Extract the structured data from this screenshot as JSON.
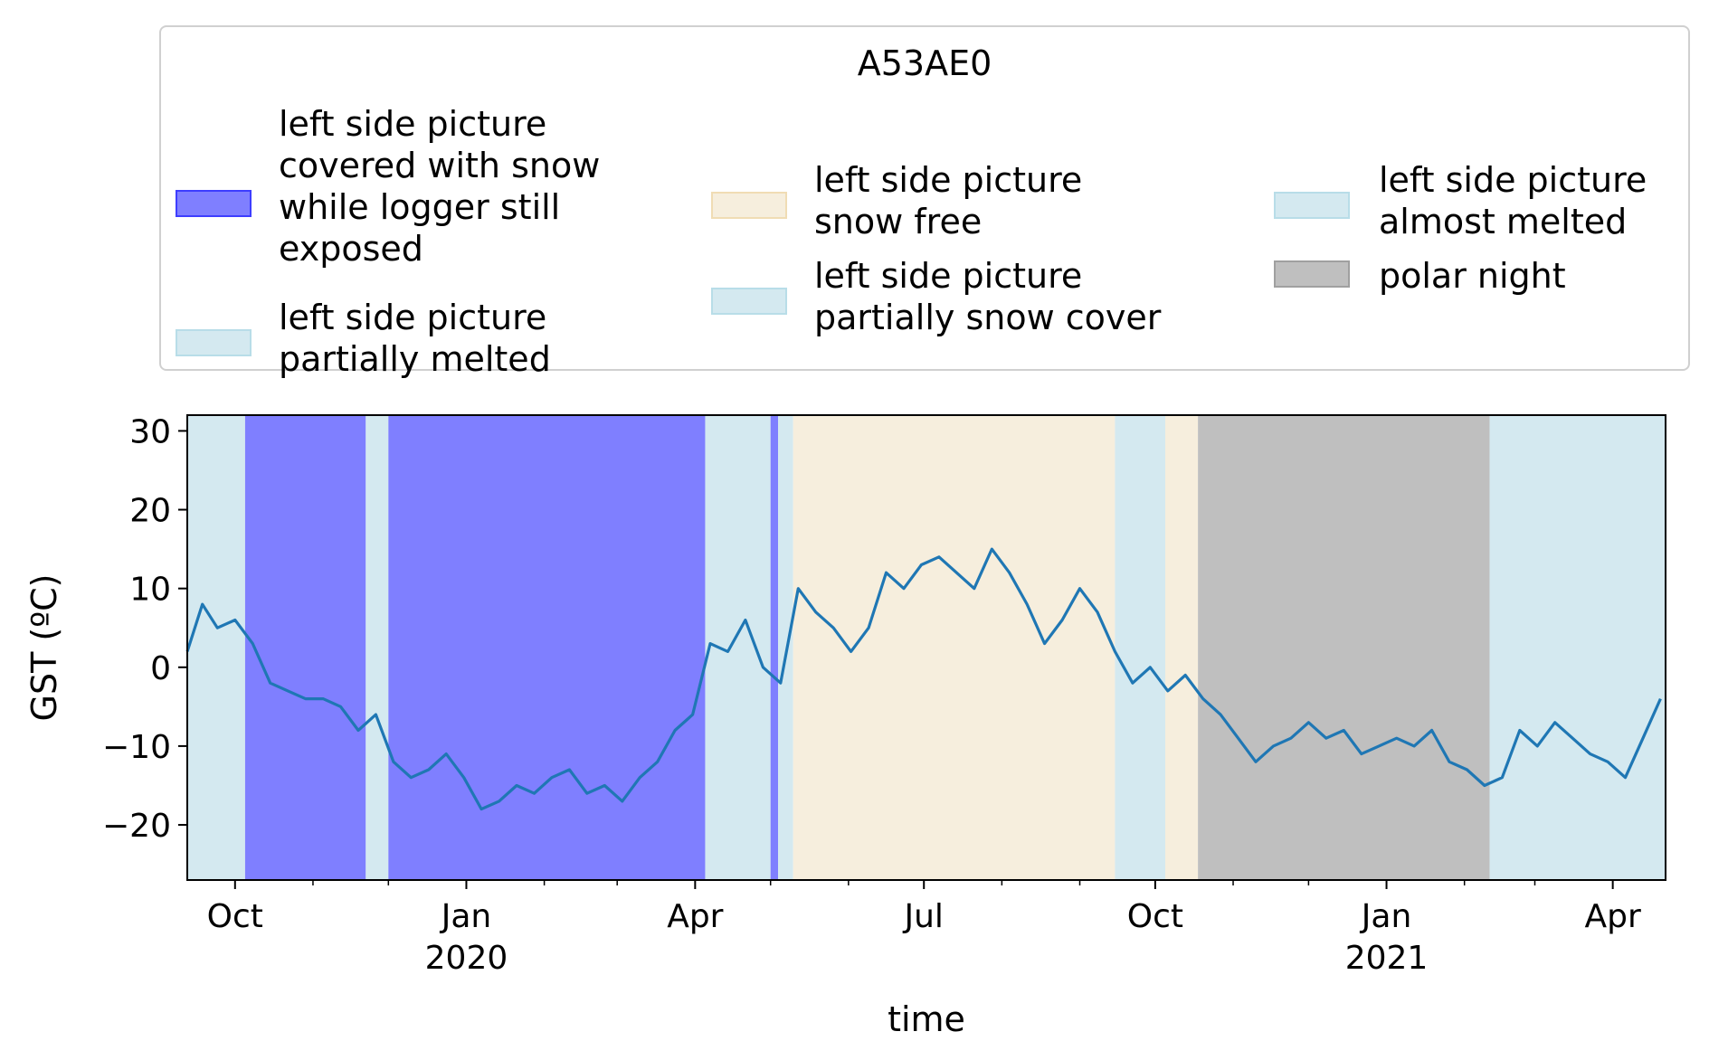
{
  "chart_data": {
    "type": "line",
    "title": "",
    "xlabel": "time",
    "ylabel": "GST (ºC)",
    "ylim": [
      -27,
      32
    ],
    "xlim": [
      "2019-09-12",
      "2021-04-22"
    ],
    "y_ticks": [
      30,
      20,
      10,
      0,
      -10,
      -20
    ],
    "y_tick_labels": [
      "30",
      "20",
      "10",
      "0",
      "−10",
      "−20"
    ],
    "x_ticks": [
      {
        "date": "2019-10-01",
        "label": "Oct",
        "sublabel": ""
      },
      {
        "date": "2020-01-01",
        "label": "Jan",
        "sublabel": "2020"
      },
      {
        "date": "2020-04-01",
        "label": "Apr",
        "sublabel": ""
      },
      {
        "date": "2020-07-01",
        "label": "Jul",
        "sublabel": ""
      },
      {
        "date": "2020-10-01",
        "label": "Oct",
        "sublabel": ""
      },
      {
        "date": "2021-01-01",
        "label": "Jan",
        "sublabel": "2021"
      },
      {
        "date": "2021-04-01",
        "label": "Apr",
        "sublabel": ""
      }
    ],
    "minor_ticks": [
      "2019-09-01",
      "2019-11-01",
      "2019-12-01",
      "2020-02-01",
      "2020-03-01",
      "2020-05-01",
      "2020-06-01",
      "2020-08-01",
      "2020-09-01",
      "2020-11-01",
      "2020-12-01",
      "2021-02-01",
      "2021-03-01"
    ],
    "legend": {
      "title": "A53AE0",
      "placement": "top",
      "entries": [
        {
          "label": "left side picture\ncovered with snow\nwhile logger still\nexposed",
          "color": "#7f7fff",
          "edge": "#3d3dff"
        },
        {
          "label": "left side picture\npartially melted",
          "color": "#d4e9f0",
          "edge": "#b8dde8"
        },
        {
          "label": "left side picture\nsnow free",
          "color": "#f6eedd",
          "edge": "#f0dcb4"
        },
        {
          "label": "left side picture\npartially snow cover",
          "color": "#d4e9f0",
          "edge": "#b8dde8"
        },
        {
          "label": "left side picture\nalmost melted",
          "color": "#d4e9f0",
          "edge": "#b8dde8"
        },
        {
          "label": "polar night",
          "color": "#bfbfbf",
          "edge": "#a0a0a0"
        }
      ]
    },
    "spans": [
      {
        "start": "2019-09-12",
        "end": "2019-10-05",
        "category": "left side picture partially melted",
        "color": "#d4e9f0"
      },
      {
        "start": "2019-10-05",
        "end": "2019-11-22",
        "category": "left side picture covered with snow while logger still exposed",
        "color": "#7f7fff"
      },
      {
        "start": "2019-11-22",
        "end": "2019-12-01",
        "category": "left side picture partially melted",
        "color": "#d4e9f0"
      },
      {
        "start": "2019-12-01",
        "end": "2020-04-05",
        "category": "left side picture covered with snow while logger still exposed",
        "color": "#7f7fff"
      },
      {
        "start": "2020-04-05",
        "end": "2020-05-01",
        "category": "left side picture partially melted",
        "color": "#d4e9f0"
      },
      {
        "start": "2020-05-01",
        "end": "2020-05-04",
        "category": "left side picture covered with snow while logger still exposed",
        "color": "#7f7fff"
      },
      {
        "start": "2020-05-04",
        "end": "2020-05-10",
        "category": "left side picture almost melted",
        "color": "#d4e9f0"
      },
      {
        "start": "2020-05-10",
        "end": "2020-09-15",
        "category": "left side picture snow free",
        "color": "#f6eedd"
      },
      {
        "start": "2020-09-15",
        "end": "2020-10-05",
        "category": "left side picture partially snow cover",
        "color": "#d4e9f0"
      },
      {
        "start": "2020-10-05",
        "end": "2020-10-18",
        "category": "left side picture snow free",
        "color": "#f6eedd"
      },
      {
        "start": "2020-10-18",
        "end": "2021-02-11",
        "category": "polar night",
        "color": "#bfbfbf"
      },
      {
        "start": "2021-02-11",
        "end": "2021-04-22",
        "category": "left side picture almost melted",
        "color": "#d4e9f0"
      }
    ],
    "series": [
      {
        "name": "",
        "color": "#1f77b4",
        "x": [
          "2019-09-12",
          "2019-09-18",
          "2019-09-24",
          "2019-10-01",
          "2019-10-08",
          "2019-10-15",
          "2019-10-22",
          "2019-10-29",
          "2019-11-05",
          "2019-11-12",
          "2019-11-19",
          "2019-11-26",
          "2019-12-03",
          "2019-12-10",
          "2019-12-17",
          "2019-12-24",
          "2019-12-31",
          "2020-01-07",
          "2020-01-14",
          "2020-01-21",
          "2020-01-28",
          "2020-02-04",
          "2020-02-11",
          "2020-02-18",
          "2020-02-25",
          "2020-03-03",
          "2020-03-10",
          "2020-03-17",
          "2020-03-24",
          "2020-03-31",
          "2020-04-07",
          "2020-04-14",
          "2020-04-21",
          "2020-04-28",
          "2020-05-05",
          "2020-05-12",
          "2020-05-19",
          "2020-05-26",
          "2020-06-02",
          "2020-06-09",
          "2020-06-16",
          "2020-06-23",
          "2020-06-30",
          "2020-07-07",
          "2020-07-14",
          "2020-07-21",
          "2020-07-28",
          "2020-08-04",
          "2020-08-11",
          "2020-08-18",
          "2020-08-25",
          "2020-09-01",
          "2020-09-08",
          "2020-09-15",
          "2020-09-22",
          "2020-09-29",
          "2020-10-06",
          "2020-10-13",
          "2020-10-20",
          "2020-10-27",
          "2020-11-03",
          "2020-11-10",
          "2020-11-17",
          "2020-11-24",
          "2020-12-01",
          "2020-12-08",
          "2020-12-15",
          "2020-12-22",
          "2020-12-29",
          "2021-01-05",
          "2021-01-12",
          "2021-01-19",
          "2021-01-26",
          "2021-02-02",
          "2021-02-09",
          "2021-02-16",
          "2021-02-23",
          "2021-03-02",
          "2021-03-09",
          "2021-03-16",
          "2021-03-23",
          "2021-03-30",
          "2021-04-06",
          "2021-04-13",
          "2021-04-20"
        ],
        "values": [
          2,
          8,
          5,
          6,
          3,
          -2,
          -3,
          -4,
          -4,
          -5,
          -8,
          -6,
          -12,
          -14,
          -13,
          -11,
          -14,
          -18,
          -17,
          -15,
          -16,
          -14,
          -13,
          -16,
          -15,
          -17,
          -14,
          -12,
          -8,
          -6,
          3,
          2,
          6,
          0,
          -2,
          10,
          7,
          5,
          2,
          5,
          12,
          10,
          13,
          14,
          12,
          10,
          15,
          12,
          8,
          3,
          6,
          10,
          7,
          2,
          -2,
          0,
          -3,
          -1,
          -4,
          -6,
          -9,
          -12,
          -10,
          -9,
          -7,
          -9,
          -8,
          -11,
          -10,
          -9,
          -10,
          -8,
          -12,
          -13,
          -15,
          -14,
          -8,
          -10,
          -7,
          -9,
          -11,
          -12,
          -14,
          -9,
          -4
        ]
      }
    ]
  }
}
